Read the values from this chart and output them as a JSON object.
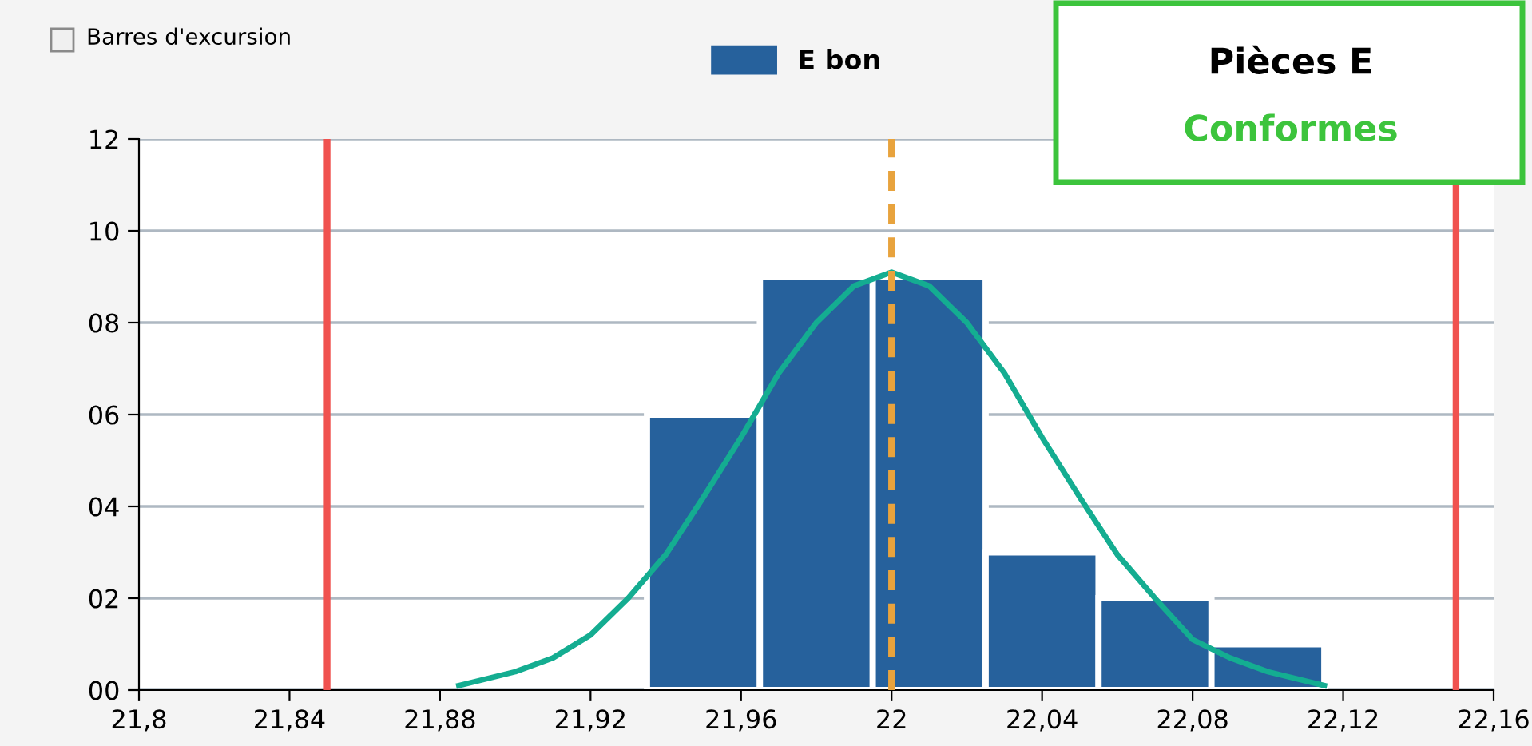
{
  "chart_data": {
    "type": "histogram",
    "bins": [
      21.935,
      21.965,
      21.995,
      22.025,
      22.055,
      22.085,
      22.115
    ],
    "series": [
      {
        "name": "E bon",
        "type": "histogram",
        "color": "#26619c",
        "values": [
          6,
          9,
          9,
          3,
          2,
          1
        ]
      },
      {
        "type": "line",
        "color": "#14ad91",
        "x": [
          21.885,
          21.9,
          21.91,
          21.92,
          21.93,
          21.94,
          21.95,
          21.96,
          21.97,
          21.98,
          21.99,
          22.0,
          22.01,
          22.02,
          22.03,
          22.04,
          22.05,
          22.06,
          22.07,
          22.08,
          22.09,
          22.1,
          22.115
        ],
        "values": [
          0.1,
          0.4,
          0.7,
          1.2,
          2.0,
          2.95,
          4.2,
          5.5,
          6.9,
          8.0,
          8.8,
          9.1,
          8.8,
          8.0,
          6.9,
          5.5,
          4.2,
          2.95,
          2.0,
          1.1,
          0.7,
          0.4,
          0.1
        ]
      }
    ],
    "xlim": [
      21.8,
      22.16
    ],
    "xticks": [
      {
        "value": 21.8,
        "label": "21,8"
      },
      {
        "value": 21.84,
        "label": "21,84"
      },
      {
        "value": 21.88,
        "label": "21,88"
      },
      {
        "value": 21.92,
        "label": "21,92"
      },
      {
        "value": 21.96,
        "label": "21,96"
      },
      {
        "value": 22,
        "label": "22"
      },
      {
        "value": 22.04,
        "label": "22,04"
      },
      {
        "value": 22.08,
        "label": "22,08"
      },
      {
        "value": 22.12,
        "label": "22,12"
      },
      {
        "value": 22.16,
        "label": "22,16"
      }
    ],
    "ylim": [
      0,
      12
    ],
    "yticks": [
      {
        "value": 0,
        "label": "00"
      },
      {
        "value": 2,
        "label": "02"
      },
      {
        "value": 4,
        "label": "04"
      },
      {
        "value": 6,
        "label": "06"
      },
      {
        "value": 8,
        "label": "08"
      },
      {
        "value": 10,
        "label": "10"
      },
      {
        "value": 12,
        "label": "12"
      }
    ],
    "ref_lines": [
      {
        "axis": "x",
        "value": 21.85,
        "color": "#f0524f",
        "line_style": "solid"
      },
      {
        "axis": "x",
        "value": 22.15,
        "color": "#f0524f",
        "line_style": "solid"
      },
      {
        "axis": "x",
        "value": 22.0,
        "color": "#e8a33d",
        "line_style": "dashed"
      }
    ],
    "grid": "y",
    "legend": "top",
    "annotations": [
      "Barres d'excursion",
      "Pièces E",
      "Conformes"
    ]
  }
}
